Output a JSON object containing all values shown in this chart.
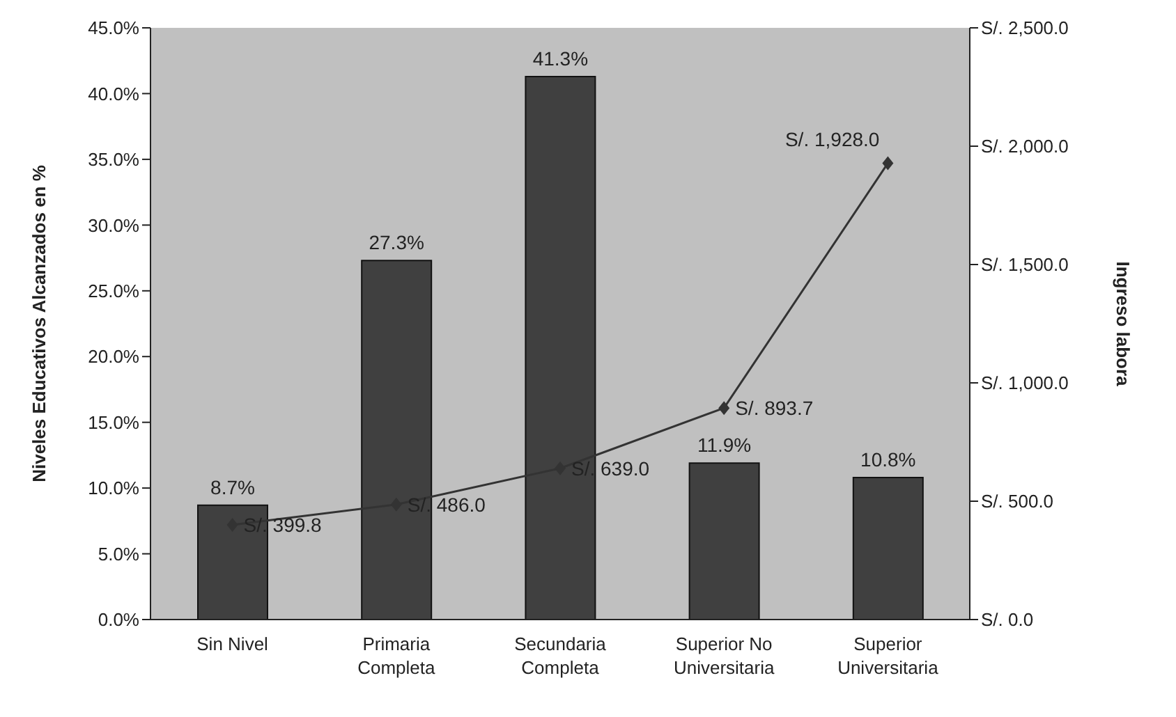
{
  "chart_data": {
    "type": "bar",
    "ylabel": "Niveles Educativos Alcanzados en %",
    "y2label": "Ingreso labora",
    "categories": [
      "Sin Nivel",
      "Primaria\nCompleta",
      "Secundaria\nCompleta",
      "Superior No\nUniversitaria",
      "Superior\nUniversitaria"
    ],
    "series": [
      {
        "color": "#404040",
        "values": [
          8.7,
          27.3,
          41.3,
          11.9,
          10.8
        ],
        "value_labels": [
          "8.7%",
          "27.3%",
          "41.3%",
          "11.9%",
          "10.8%"
        ]
      },
      {
        "type": "line",
        "axis": "y2",
        "color": "#333333",
        "marker": "diamond",
        "values": [
          399.8,
          486.0,
          639.0,
          893.7,
          1928.0
        ],
        "value_labels": [
          "S/. 399.8",
          "S/. 486.0",
          "S/. 639.0",
          "S/. 893.7",
          "S/. 1,928.0"
        ]
      }
    ],
    "ylim": [
      0,
      45
    ],
    "yticks": [
      {
        "value": 0,
        "label": "0.0%"
      },
      {
        "value": 5,
        "label": "5.0%"
      },
      {
        "value": 10,
        "label": "10.0%"
      },
      {
        "value": 15,
        "label": "15.0%"
      },
      {
        "value": 20,
        "label": "20.0%"
      },
      {
        "value": 25,
        "label": "25.0%"
      },
      {
        "value": 30,
        "label": "30.0%"
      },
      {
        "value": 35,
        "label": "35.0%"
      },
      {
        "value": 40,
        "label": "40.0%"
      },
      {
        "value": 45,
        "label": "45.0%"
      }
    ],
    "y2lim": [
      0,
      2500
    ],
    "y2ticks": [
      {
        "value": 0,
        "label": "S/. 0.0"
      },
      {
        "value": 500,
        "label": "S/. 500.0"
      },
      {
        "value": 1000,
        "label": "S/. 1,000.0"
      },
      {
        "value": 1500,
        "label": "S/. 1,500.0"
      },
      {
        "value": 2000,
        "label": "S/. 2,000.0"
      },
      {
        "value": 2500,
        "label": "S/. 2,500.0"
      }
    ],
    "grid": false,
    "legend": false
  }
}
